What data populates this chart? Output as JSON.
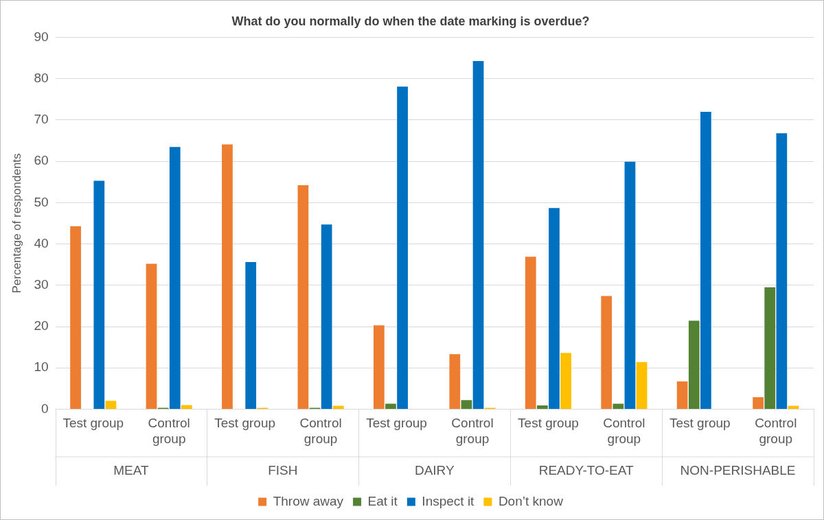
{
  "chart_data": {
    "type": "bar",
    "title": "What do you normally do when the date marking is overdue?",
    "ylabel": "Percentage of respondents",
    "categories": [
      "Test group",
      "Control group",
      "Test group",
      "Control group",
      "Test group",
      "Control group",
      "Test group",
      "Control group",
      "Test group",
      "Control group"
    ],
    "annotations": [
      "MEAT",
      "FISH",
      "DAIRY",
      "READY-TO-EAT",
      "NON-PERISHABLE"
    ],
    "series": [
      {
        "name": "Throw away",
        "color": "#ed7d31",
        "values": [
          44.3,
          35.2,
          64.1,
          54.2,
          20.3,
          13.3,
          36.9,
          27.4,
          6.7,
          2.9
        ]
      },
      {
        "name": "Eat it",
        "color": "#548235",
        "values": [
          0,
          0.3,
          0,
          0.3,
          1.3,
          2.2,
          0.9,
          1.3,
          21.4,
          29.5
        ]
      },
      {
        "name": "Inspect it",
        "color": "#0070c0",
        "values": [
          55.3,
          63.5,
          35.6,
          44.7,
          78.1,
          84.3,
          48.7,
          59.9,
          72.0,
          66.8
        ]
      },
      {
        "name": "Don’t know",
        "color": "#ffc000",
        "values": [
          2.0,
          1.0,
          0.3,
          0.8,
          0,
          0.3,
          13.6,
          11.4,
          0,
          0.8
        ]
      }
    ],
    "ylim": [
      0,
      90
    ],
    "yticks": [
      0,
      10,
      20,
      30,
      40,
      50,
      60,
      70,
      80,
      90
    ],
    "grid": "y",
    "legend": "bottom"
  }
}
